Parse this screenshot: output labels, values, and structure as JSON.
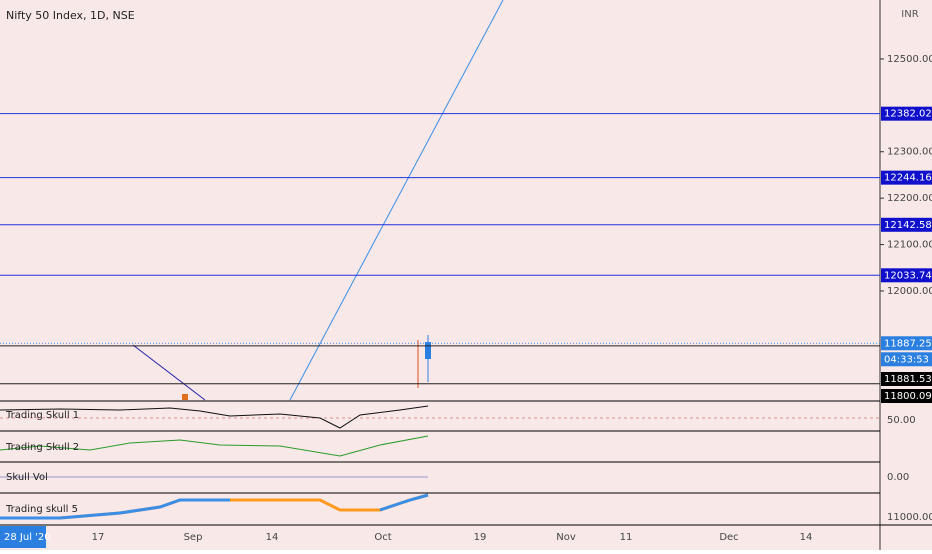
{
  "header": {
    "title": "Nifty 50 Index, 1D, NSE",
    "currency": "INR"
  },
  "price_axis": {
    "ylim": [
      11765,
      12627
    ],
    "ticks": [
      {
        "value": 12500,
        "label": "12500.00"
      },
      {
        "value": 12300,
        "label": "12300.00"
      },
      {
        "value": 12200,
        "label": "12200.00"
      },
      {
        "value": 12100,
        "label": "12100.00"
      },
      {
        "value": 12000,
        "label": "12000.00"
      }
    ],
    "levels": [
      12382.02,
      12244.16,
      12142.58,
      12033.74
    ],
    "last_price": 11887.25,
    "countdown": "04:33:53",
    "low_marks": [
      11881.53,
      11800.09
    ]
  },
  "panes": [
    {
      "label": "Trading Skull 1",
      "axis_label": "50.00"
    },
    {
      "label": "Trading Skull 2"
    },
    {
      "label": "Skull Vol",
      "axis_label": "0.00"
    },
    {
      "label": "Trading skull 5",
      "axis_label": "11000.00"
    }
  ],
  "time_axis": {
    "start": "28 Jul '20",
    "labels": [
      "17",
      "Sep",
      "14",
      "Oct",
      "19",
      "Nov",
      "11",
      "Dec",
      "14"
    ]
  }
}
